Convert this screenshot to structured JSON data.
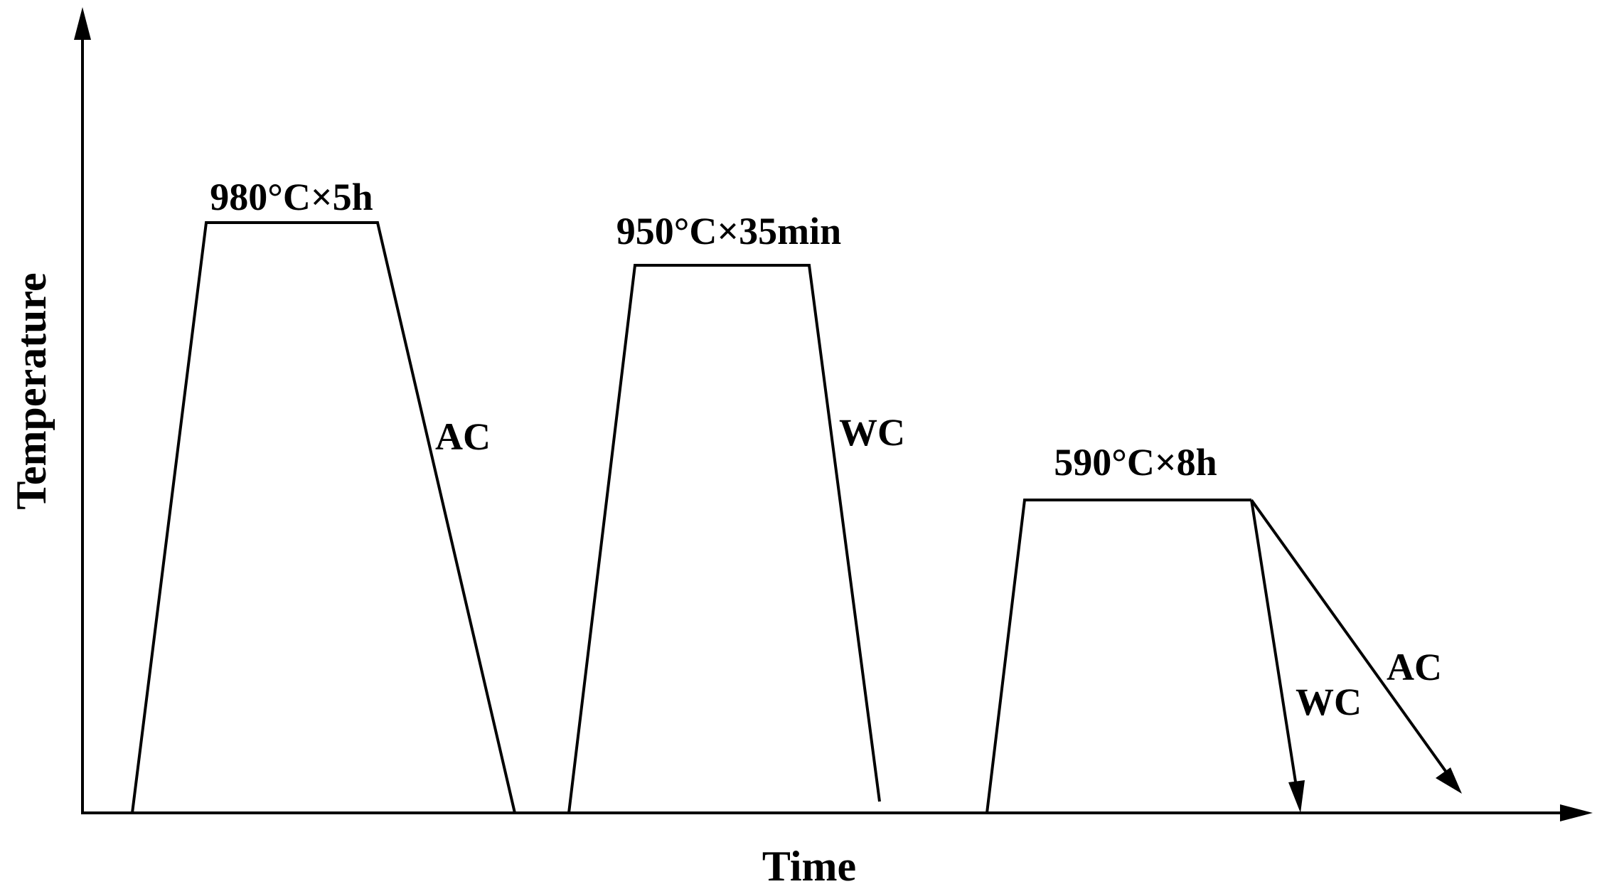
{
  "axes": {
    "x_label": "Time",
    "y_label": "Temperature"
  },
  "stages": [
    {
      "label": "980°C×5h",
      "cooling": "AC"
    },
    {
      "label": "950°C×35min",
      "cooling": "WC"
    },
    {
      "label": "590°C×8h",
      "cooling_options": [
        "WC",
        "AC"
      ]
    }
  ],
  "colors": {
    "ink": "#000000",
    "background": "#ffffff"
  }
}
